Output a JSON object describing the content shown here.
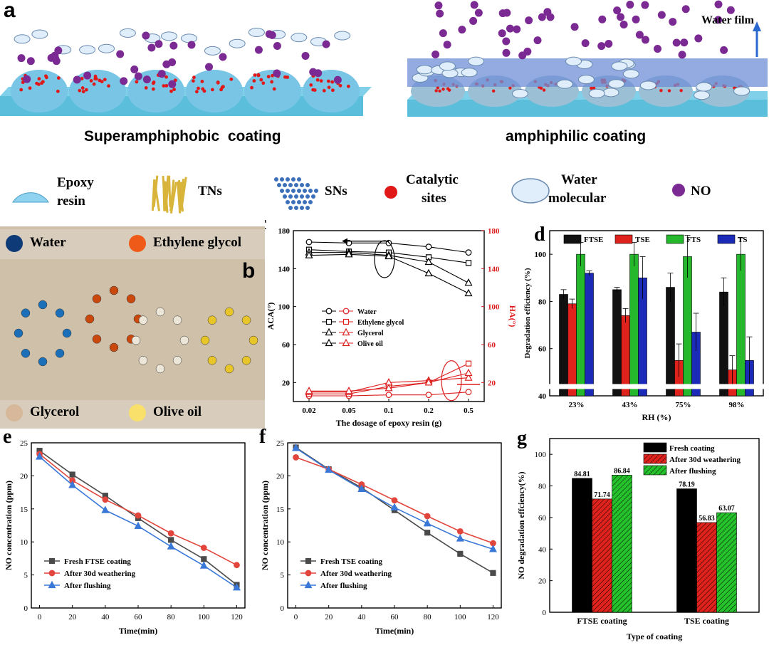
{
  "panel_a": {
    "label": "a",
    "left_caption": "Superamphiphobic  coating",
    "right_caption": "amphiphilic coating",
    "water_film_label": "Water film"
  },
  "legend_top": {
    "epoxy": [
      "Epoxy",
      "resin"
    ],
    "tns": "TNs",
    "sns": "SNs",
    "catalytic": [
      "Catalytic",
      "sites"
    ],
    "water": [
      "Water",
      "molecular"
    ],
    "no": "NO",
    "colors": {
      "epoxy": "#8fd3f0",
      "tns": "#d8b43a",
      "sns": "#3b6fb8",
      "catalytic": "#e01818",
      "water": "#dfeefa",
      "no": "#7a2a92"
    }
  },
  "panel_b": {
    "label": "b",
    "legend": [
      {
        "name": "Water",
        "color": "#0e3a78"
      },
      {
        "name": "Ethylene glycol",
        "color": "#ef5a18"
      },
      {
        "name": "Glycerol",
        "color": "#d7b89a"
      },
      {
        "name": "Olive oil",
        "color": "#f8e06a"
      }
    ]
  },
  "chart_data": [
    {
      "id": "c",
      "label": "c",
      "type": "line",
      "x": [
        "0.02",
        "0.05",
        "0.1",
        "0.2",
        "0.5"
      ],
      "xlabel": "The dosage of epoxy resin (g)",
      "ylabel": "ACA(°)",
      "ylim": [
        0,
        180
      ],
      "yticks": [
        20,
        60,
        100,
        140,
        180
      ],
      "y2label": "HA(°)",
      "y2lim": [
        0,
        180
      ],
      "y2ticks": [
        20,
        60,
        100,
        140,
        180
      ],
      "series": [
        {
          "name": "Water",
          "axis": "left",
          "marker": "half-circle",
          "values": [
            168,
            167,
            167,
            163,
            157
          ]
        },
        {
          "name": "Ethylene glycol",
          "axis": "left",
          "marker": "half-square",
          "values": [
            160,
            158,
            157,
            152,
            146
          ]
        },
        {
          "name": "Glycerol",
          "axis": "left",
          "marker": "half-triangle",
          "values": [
            157,
            157,
            154,
            147,
            125
          ]
        },
        {
          "name": "Olive oil",
          "axis": "left",
          "marker": "open-star",
          "values": [
            154,
            155,
            153,
            135,
            114
          ]
        },
        {
          "name": "Water",
          "axis": "right",
          "marker": "half-circle",
          "values": [
            6,
            6,
            7,
            7,
            10
          ]
        },
        {
          "name": "Ethylene glycol",
          "axis": "right",
          "marker": "half-square",
          "values": [
            8,
            8,
            16,
            20,
            40
          ]
        },
        {
          "name": "Glycerol",
          "axis": "right",
          "marker": "half-triangle",
          "values": [
            10,
            10,
            20,
            22,
            25
          ]
        },
        {
          "name": "Olive oil",
          "axis": "right",
          "marker": "open-star",
          "values": [
            11,
            11,
            14,
            20,
            30
          ]
        }
      ],
      "colors": {
        "left": "#000000",
        "right": "#dd1e1e"
      }
    },
    {
      "id": "d",
      "label": "d",
      "type": "bar",
      "categories": [
        "23%",
        "43%",
        "75%",
        "98%"
      ],
      "xlabel": "RH (%)",
      "ylabel": "Degradation efficiency (%)",
      "ylim": [
        40,
        110
      ],
      "yticks": [
        40,
        60,
        80,
        100
      ],
      "axis_break": true,
      "series": [
        {
          "name": "FTSE",
          "color": "#111111",
          "values": [
            83,
            85,
            86,
            84
          ],
          "err": [
            2,
            1,
            6,
            6
          ]
        },
        {
          "name": "TSE",
          "color": "#e0221c",
          "values": [
            79,
            74,
            55,
            51
          ],
          "err": [
            2,
            3,
            7,
            6
          ]
        },
        {
          "name": "FTS",
          "color": "#25b82c",
          "values": [
            100,
            100,
            99,
            100
          ],
          "err": [
            5,
            5,
            9,
            7
          ]
        },
        {
          "name": "TS",
          "color": "#1c2ab8",
          "values": [
            92,
            90,
            67,
            55
          ],
          "err": [
            1,
            9,
            8,
            10
          ]
        }
      ]
    },
    {
      "id": "e",
      "label": "e",
      "type": "line",
      "x": [
        0,
        20,
        40,
        60,
        80,
        100,
        120
      ],
      "xlabel": "Time(min)",
      "ylabel": "NO concentration (ppm)",
      "xlim": [
        -5,
        125
      ],
      "ylim": [
        0,
        25
      ],
      "yticks": [
        0,
        5,
        10,
        15,
        20,
        25
      ],
      "series": [
        {
          "name": "Fresh FTSE coating",
          "color": "#4a4a4a",
          "marker": "square",
          "values": [
            23.8,
            20.2,
            17.0,
            13.6,
            10.3,
            7.4,
            3.5
          ]
        },
        {
          "name": "After 30d weathering",
          "color": "#e2453c",
          "marker": "circle",
          "values": [
            23.3,
            19.3,
            16.4,
            14.0,
            11.3,
            9.1,
            6.5
          ]
        },
        {
          "name": "After flushing",
          "color": "#3a78d8",
          "marker": "triangle",
          "values": [
            22.9,
            18.6,
            14.8,
            12.4,
            9.3,
            6.4,
            3.1
          ]
        }
      ]
    },
    {
      "id": "f",
      "label": "f",
      "type": "line",
      "x": [
        0,
        20,
        40,
        60,
        80,
        100,
        120
      ],
      "xlabel": "Time(min)",
      "ylabel": "NO concentration (ppm)",
      "xlim": [
        -5,
        125
      ],
      "ylim": [
        0,
        25
      ],
      "yticks": [
        0,
        5,
        10,
        15,
        20,
        25
      ],
      "series": [
        {
          "name": "Fresh TSE coating",
          "color": "#4a4a4a",
          "marker": "square",
          "values": [
            24.3,
            21.0,
            18.2,
            14.8,
            11.4,
            8.2,
            5.3
          ]
        },
        {
          "name": "After 30d weathering",
          "color": "#e2453c",
          "marker": "circle",
          "values": [
            22.8,
            21.0,
            18.7,
            16.3,
            13.9,
            11.6,
            9.8
          ]
        },
        {
          "name": "After flushing",
          "color": "#3a78d8",
          "marker": "triangle",
          "values": [
            24.2,
            20.9,
            18.0,
            15.2,
            12.8,
            10.5,
            8.9
          ]
        }
      ]
    },
    {
      "id": "g",
      "label": "g",
      "type": "bar",
      "categories": [
        "FTSE coating",
        "TSE coating"
      ],
      "xlabel": "Type of coating",
      "ylabel": "NO degradation effciency(%)",
      "ylim": [
        0,
        110
      ],
      "yticks": [
        0,
        20,
        40,
        60,
        80,
        100
      ],
      "series": [
        {
          "name": "Fresh coating",
          "color": "#000000",
          "values": [
            84.81,
            78.19
          ],
          "labels": [
            "84.81",
            "78.19"
          ]
        },
        {
          "name": "After 30d weathering",
          "color": "#e0221c",
          "values": [
            71.74,
            56.83
          ],
          "labels": [
            "71.74",
            "56.83"
          ]
        },
        {
          "name": "After flushing",
          "color": "#25c22c",
          "values": [
            86.84,
            63.07
          ],
          "labels": [
            "86.84",
            "63.07"
          ]
        }
      ]
    }
  ]
}
